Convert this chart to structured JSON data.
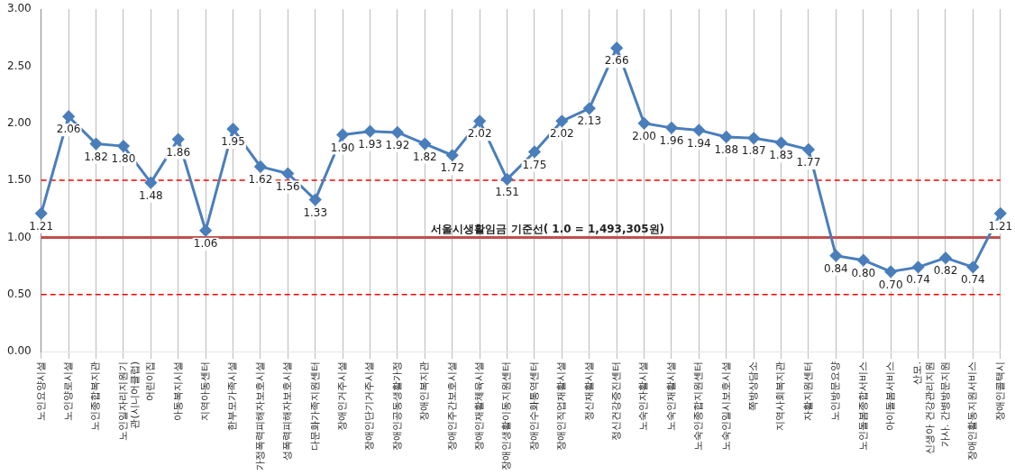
{
  "chart_data": {
    "type": "line",
    "categories": [
      "노인요양시설",
      "노인양로시설",
      "노인종합복지관",
      "노인일자리지원기관(시니어클럽)",
      "어린이집",
      "아동복지시설",
      "지역아동센터",
      "한부모가족시설",
      "가정폭력피해자보호시설",
      "성폭력피해자보호시설",
      "다문화가족지원센터",
      "장애인거주시설",
      "장애인단기거주시설",
      "장애인공동생활가정",
      "장애인복지관",
      "장애인주간보호시설",
      "장애인재활체육시설",
      "장애인생활이동지원센터",
      "장애인수화통역센터",
      "장애인직업재활시설",
      "정신재활시설",
      "정신건강증진센터",
      "노숙인자활시설",
      "노숙인재활시설",
      "노숙인종합지원센터",
      "노숙인일시보호시설",
      "쪽방상담소",
      "지역사회복지관",
      "자활지원센터",
      "노인방문요양",
      "노인돌봄종합서비스",
      "아이돌봄서비스",
      "산모. 신생아 건강관리지원",
      "가사. 간병방문지원",
      "장애인활동지원서비스",
      "장애인콜택시"
    ],
    "series": [
      {
        "color": "#4a7ebb",
        "values": [
          1.21,
          2.06,
          1.82,
          1.8,
          1.48,
          1.86,
          1.06,
          1.95,
          1.62,
          1.56,
          1.33,
          1.9,
          1.93,
          1.92,
          1.82,
          1.72,
          2.02,
          1.51,
          1.75,
          2.02,
          2.13,
          2.66,
          2.0,
          1.96,
          1.94,
          1.88,
          1.87,
          1.83,
          1.77,
          0.84,
          0.8,
          0.7,
          0.74,
          0.82,
          0.74,
          1.21
        ],
        "value_labels": [
          "1.21",
          "2.06",
          "1.82",
          "1.80",
          "1.48",
          "1.86",
          "1.06",
          "1.95",
          "1.62",
          "1.56",
          "1.33",
          "1.90",
          "1.93",
          "1.92",
          "1.82",
          "1.72",
          "2.02",
          "1.51",
          "1.75",
          "2.02",
          "2.13",
          "2.66",
          "2.00",
          "1.96",
          "1.94",
          "1.88",
          "1.87",
          "1.83",
          "1.77",
          "0.84",
          "0.80",
          "0.70",
          "0.74",
          "0.82",
          "0.74",
          "1.21"
        ]
      }
    ],
    "ylim": [
      0,
      3
    ],
    "yticks": [
      "0.00",
      "0.50",
      "1.00",
      "1.50",
      "2.00",
      "2.50",
      "3.00"
    ],
    "ref_lines": [
      {
        "axis": "y",
        "value": 1.0,
        "label": "서울시생활임금 기준선( 1.0 = 1,493,305원)",
        "color": "#c0504d",
        "line_style": "solid"
      },
      {
        "axis": "y",
        "value": 1.5,
        "label": null,
        "color": "#ff0000",
        "line_style": "dashed"
      },
      {
        "axis": "y",
        "value": 0.5,
        "label": null,
        "color": "#ff0000",
        "line_style": "dashed"
      }
    ],
    "grid": "x",
    "marker": "diamond",
    "line_style": "solid",
    "legend": false
  }
}
